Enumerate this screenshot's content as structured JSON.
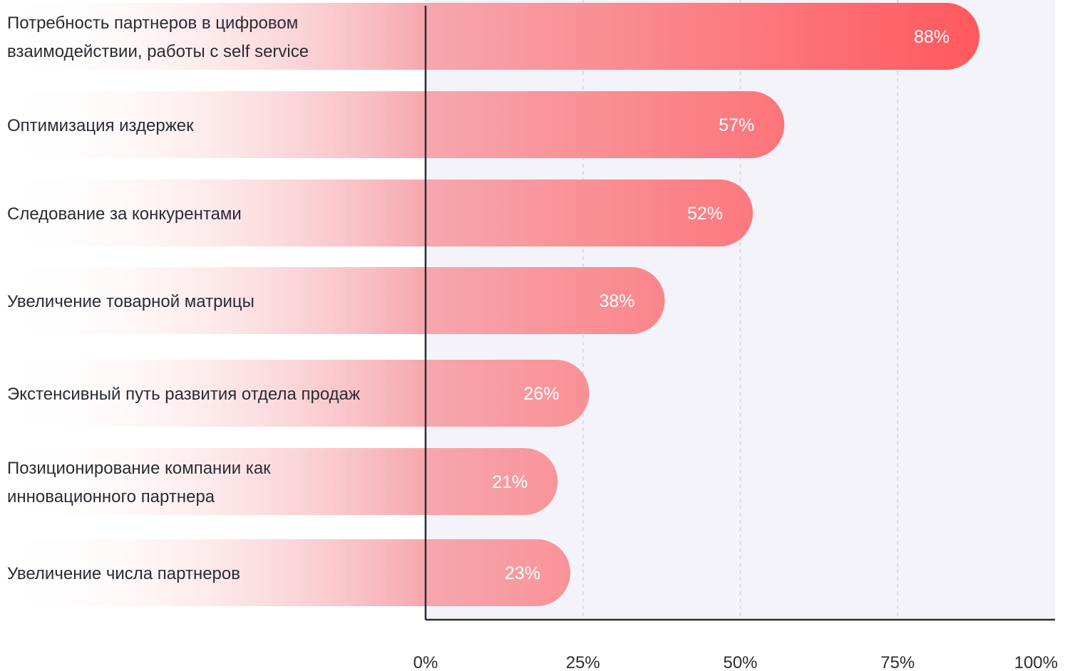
{
  "chart_data": {
    "type": "bar",
    "orientation": "horizontal",
    "title": "",
    "xlabel": "",
    "ylabel": "",
    "xlim": [
      0,
      100
    ],
    "grid": "vertical dashed",
    "categories": [
      [
        "Потребность партнеров в цифровом",
        "взаимодействии, работы с self service"
      ],
      [
        "Оптимизация издержек"
      ],
      [
        "Следование за конкурентами"
      ],
      [
        "Увеличение товарной матрицы"
      ],
      [
        "Экстенсивный путь развития отдела продаж"
      ],
      [
        "Позиционирование компании как",
        "инновационного партнера"
      ],
      [
        "Увеличение числа партнеров"
      ]
    ],
    "values": [
      88,
      57,
      52,
      38,
      26,
      21,
      23
    ],
    "value_labels": [
      "88%",
      "57%",
      "52%",
      "38%",
      "26%",
      "21%",
      "23%"
    ],
    "x_ticks": [
      "0%",
      "25%",
      "50%",
      "75%",
      "100%"
    ],
    "colors": {
      "bar_start": "#ffffff",
      "bar_mid": "#f6a7ad",
      "bar_end": "#ff5a5f",
      "plot_bg": "#f3f3f9",
      "axis": "#2b2b33",
      "grid": "#d2d2dc"
    }
  }
}
